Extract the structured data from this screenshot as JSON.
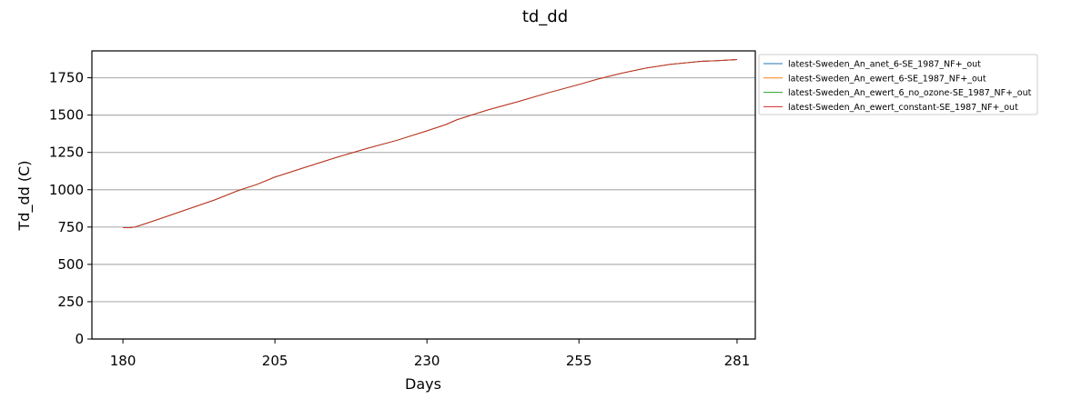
{
  "chart_data": {
    "type": "line",
    "title": "td_dd",
    "xlabel": "Days",
    "ylabel": "Td_dd (C)",
    "xlim": [
      174.9,
      284
    ],
    "ylim": [
      0,
      1930
    ],
    "xticks": [
      180,
      205,
      230,
      255,
      281
    ],
    "yticks": [
      0,
      250,
      500,
      750,
      1000,
      1250,
      1500,
      1750
    ],
    "grid": "horizontal",
    "legend_position": "outside-top-right",
    "series": [
      {
        "name": "latest-Sweden_An_anet_6-SE_1987_NF+_out",
        "color": "#1f77b4",
        "x": [
          180,
          181,
          182,
          185,
          190,
          195,
          199,
          202,
          205,
          210,
          215,
          220,
          225,
          230,
          233,
          235,
          240,
          245,
          250,
          255,
          258,
          262,
          266,
          270,
          275,
          278,
          281
        ],
        "y": [
          745,
          745,
          750,
          790,
          860,
          930,
          995,
          1035,
          1085,
          1150,
          1215,
          1275,
          1330,
          1395,
          1435,
          1470,
          1535,
          1590,
          1650,
          1705,
          1740,
          1780,
          1815,
          1840,
          1860,
          1865,
          1872
        ]
      },
      {
        "name": "latest-Sweden_An_ewert_6-SE_1987_NF+_out",
        "color": "#ff7f0e",
        "x": [
          180,
          181,
          182,
          185,
          190,
          195,
          199,
          202,
          205,
          210,
          215,
          220,
          225,
          230,
          233,
          235,
          240,
          245,
          250,
          255,
          258,
          262,
          266,
          270,
          275,
          278,
          281
        ],
        "y": [
          745,
          745,
          750,
          790,
          860,
          930,
          995,
          1035,
          1085,
          1150,
          1215,
          1275,
          1330,
          1395,
          1435,
          1470,
          1535,
          1590,
          1650,
          1705,
          1740,
          1780,
          1815,
          1840,
          1860,
          1865,
          1872
        ]
      },
      {
        "name": "latest-Sweden_An_ewert_6_no_ozone-SE_1987_NF+_out",
        "color": "#2ca02c",
        "x": [
          180,
          181,
          182,
          185,
          190,
          195,
          199,
          202,
          205,
          210,
          215,
          220,
          225,
          230,
          233,
          235,
          240,
          245,
          250,
          255,
          258,
          262,
          266,
          270,
          275,
          278,
          281
        ],
        "y": [
          745,
          745,
          750,
          790,
          860,
          930,
          995,
          1035,
          1085,
          1150,
          1215,
          1275,
          1330,
          1395,
          1435,
          1470,
          1535,
          1590,
          1650,
          1705,
          1740,
          1780,
          1815,
          1840,
          1860,
          1865,
          1872
        ]
      },
      {
        "name": "latest-Sweden_An_ewert_constant-SE_1987_NF+_out",
        "color": "#d62728",
        "x": [
          180,
          181,
          182,
          185,
          190,
          195,
          199,
          202,
          205,
          210,
          215,
          220,
          225,
          230,
          233,
          235,
          240,
          245,
          250,
          255,
          258,
          262,
          266,
          270,
          275,
          278,
          281
        ],
        "y": [
          745,
          745,
          750,
          790,
          860,
          930,
          995,
          1035,
          1085,
          1150,
          1215,
          1275,
          1330,
          1395,
          1435,
          1470,
          1535,
          1590,
          1650,
          1705,
          1740,
          1780,
          1815,
          1840,
          1860,
          1865,
          1872
        ]
      }
    ]
  }
}
